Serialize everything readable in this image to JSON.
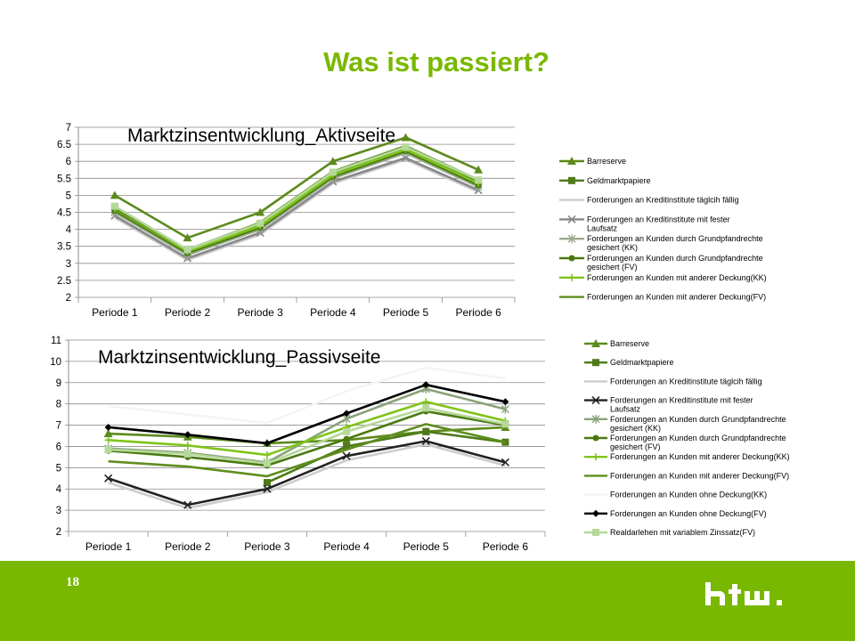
{
  "slide": {
    "title": "Was ist passiert?",
    "page_number": "18"
  },
  "logo": {
    "text": "htw."
  },
  "colors": {
    "accent": "#7ab800",
    "footer": "#79b800"
  },
  "chart_data": [
    {
      "type": "line",
      "title": "Marktzinsentwicklung_Aktivseite",
      "categories": [
        "Periode 1",
        "Periode 2",
        "Periode 3",
        "Periode 4",
        "Periode 5",
        "Periode 6"
      ],
      "ylim": [
        2,
        7
      ],
      "yticks": [
        "2",
        "2.5",
        "3",
        "3.5",
        "4",
        "4.5",
        "5",
        "5.5",
        "6",
        "6.5",
        "7"
      ],
      "grid": true,
      "legend": "right",
      "series": [
        {
          "name": "Barreserve",
          "color": "#5d8a1c",
          "marker": "triangle",
          "values": [
            5.0,
            3.75,
            4.5,
            6.0,
            6.7,
            5.75
          ]
        },
        {
          "name": "Geldmarktpapiere",
          "color": "#4e7a18",
          "marker": "square",
          "values": [
            4.65,
            3.35,
            4.15,
            5.65,
            6.4,
            5.4
          ]
        },
        {
          "name": "Forderungen an Kreditinstitute täglcih fällig",
          "color": "#cccccc",
          "marker": "none",
          "values": [
            4.35,
            3.1,
            3.85,
            5.35,
            6.05,
            5.1
          ]
        },
        {
          "name": "Forderungen an Kreditinstitute mit fester Laufsatz",
          "color": "#888888",
          "marker": "x",
          "values": [
            4.4,
            3.15,
            3.9,
            5.4,
            6.1,
            5.15
          ]
        },
        {
          "name": "Forderungen an Kunden durch Grundpfandrechte gesichert (KK)",
          "color": "#9aaa90",
          "marker": "star",
          "values": [
            4.5,
            3.25,
            4.0,
            5.5,
            6.25,
            5.25
          ]
        },
        {
          "name": "Forderungen an Kunden durch Grundpfandrechte gesichert (FV)",
          "color": "#4a7a10",
          "marker": "circle",
          "values": [
            4.55,
            3.3,
            4.05,
            5.55,
            6.3,
            5.3
          ]
        },
        {
          "name": "Forderungen an Kunden mit anderer Deckung(KK)",
          "color": "#7fc41a",
          "marker": "plus",
          "values": [
            4.6,
            3.35,
            4.1,
            5.6,
            6.35,
            5.35
          ]
        },
        {
          "name": "Forderungen an Kunden mit anderer Deckung(FV)",
          "color": "#5e8e1e",
          "marker": "none",
          "values": [
            4.62,
            3.4,
            4.2,
            5.7,
            6.45,
            5.45
          ]
        },
        {
          "name": "",
          "color": "#b6d89a",
          "marker": "square",
          "values": [
            4.68,
            3.4,
            4.18,
            5.68,
            6.42,
            5.45
          ]
        }
      ]
    },
    {
      "type": "line",
      "title": "Marktzinsentwicklung_Passivseite",
      "categories": [
        "Periode 1",
        "Periode 2",
        "Periode 3",
        "Periode 4",
        "Periode 5",
        "Periode 6"
      ],
      "ylim": [
        2,
        11
      ],
      "yticks": [
        "2",
        "3",
        "4",
        "5",
        "6",
        "7",
        "8",
        "9",
        "10",
        "11"
      ],
      "grid": true,
      "legend": "right",
      "series": [
        {
          "name": "Barreserve",
          "color": "#5d8a1c",
          "marker": "triangle",
          "values": [
            6.6,
            6.45,
            6.15,
            6.3,
            6.7,
            6.9
          ]
        },
        {
          "name": "Geldmarktpapiere",
          "color": "#4e7a18",
          "marker": "square",
          "values": [
            null,
            null,
            4.3,
            6.0,
            6.7,
            6.2
          ]
        },
        {
          "name": "Forderungen an Kreditinstitute täglcih fällig",
          "color": "#cccccc",
          "marker": "none",
          "values": [
            4.3,
            3.1,
            3.85,
            5.35,
            6.1,
            5.1
          ]
        },
        {
          "name": "Forderungen an Kreditinstitute mit fester Laufsatz",
          "color": "#222222",
          "marker": "x",
          "values": [
            4.5,
            3.25,
            4.0,
            5.55,
            6.25,
            5.25
          ]
        },
        {
          "name": "Forderungen an Kunden durch Grundpfandrechte gesichert (KK)",
          "color": "#8aa27a",
          "marker": "star",
          "values": [
            5.9,
            5.7,
            5.25,
            7.3,
            8.7,
            7.75
          ]
        },
        {
          "name": "Forderungen an Kunden durch Grundpfandrechte gesichert (FV)",
          "color": "#4a7a10",
          "marker": "circle",
          "values": [
            5.8,
            5.5,
            5.1,
            6.35,
            7.65,
            7.0
          ]
        },
        {
          "name": "Forderungen an Kunden mit anderer Deckung(KK)",
          "color": "#7fc41a",
          "marker": "plus",
          "values": [
            6.3,
            6.05,
            5.6,
            6.9,
            8.1,
            7.2
          ]
        },
        {
          "name": "Forderungen an Kunden mit anderer Deckung(FV)",
          "color": "#5e8e1e",
          "marker": "none",
          "values": [
            5.3,
            5.05,
            4.6,
            5.85,
            7.05,
            6.2
          ]
        },
        {
          "name": "Forderungen an Kunden ohne Deckung(KK)",
          "color": "#f4f4f4",
          "marker": "none",
          "values": [
            7.9,
            7.5,
            7.1,
            8.6,
            9.7,
            9.2
          ]
        },
        {
          "name": "Forderungen an Kunden ohne Deckung(FV)",
          "color": "#000000",
          "marker": "diamond",
          "values": [
            6.9,
            6.55,
            6.15,
            7.55,
            8.9,
            8.1
          ]
        },
        {
          "name": "Realdarlehen mit variablem Zinssatz(FV)",
          "color": "#b6d89a",
          "marker": "square",
          "values": [
            5.85,
            5.65,
            5.2,
            6.7,
            7.8,
            7.05
          ]
        }
      ]
    }
  ]
}
